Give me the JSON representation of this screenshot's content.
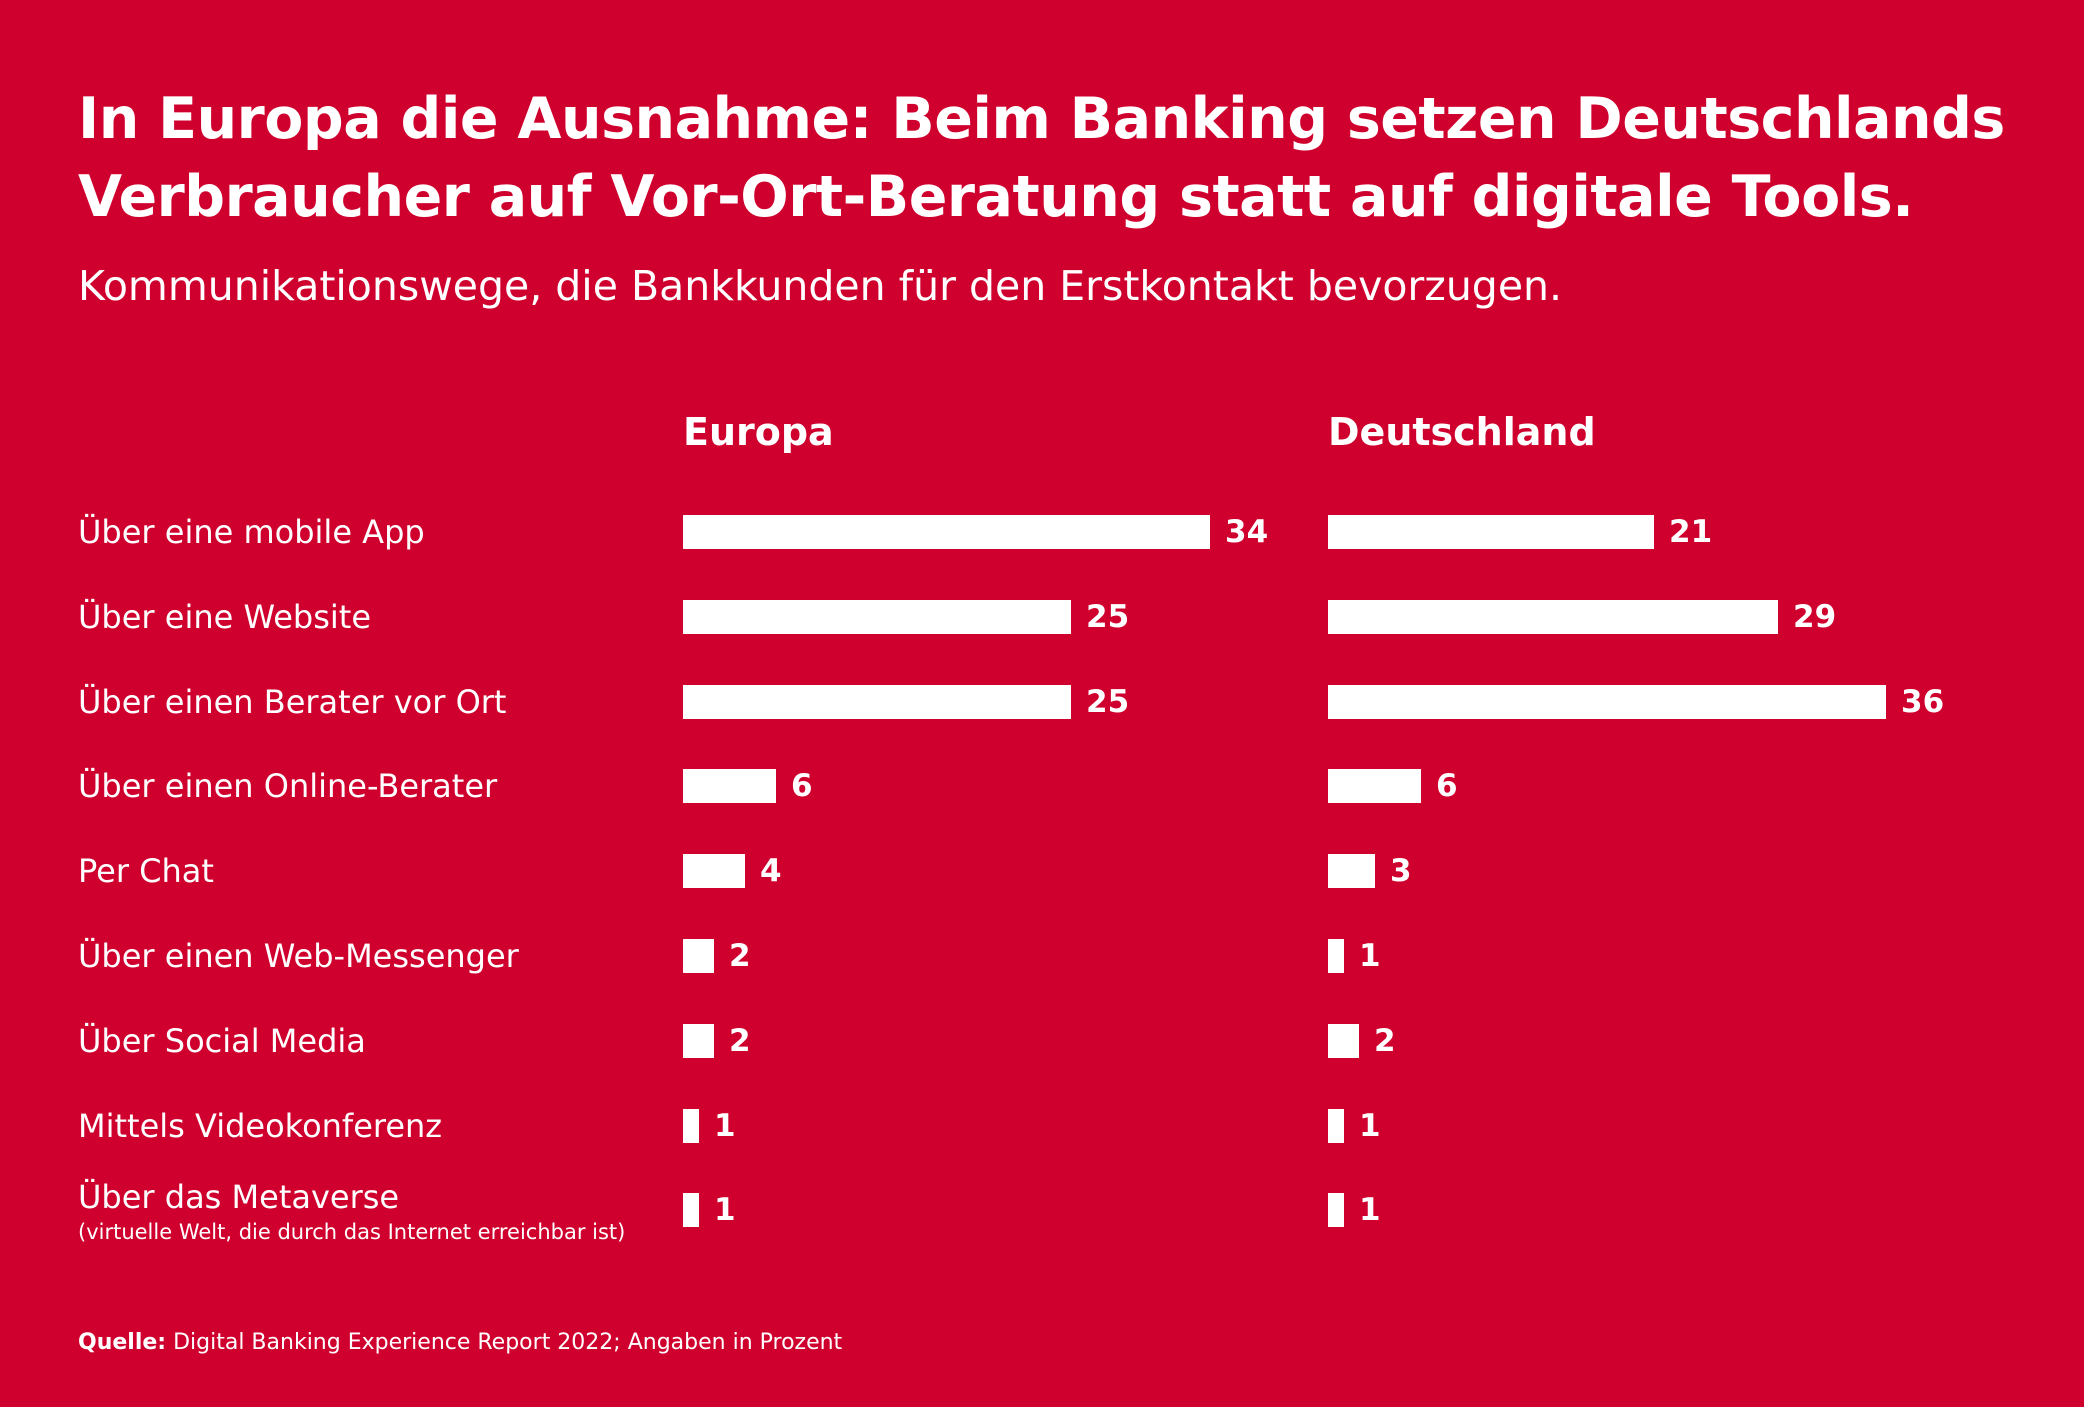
{
  "title": "In Europa die Ausnahme: Beim Banking setzen Deutschlands Verbraucher auf Vor-Ort-Beratung statt auf digitale Tools.",
  "subtitle": "Kommunikationswege, die Bankkunden für den Erstkontakt bevorzugen.",
  "source": {
    "label": "Quelle:",
    "text": "Digital Banking Experience Report 2022; Angaben in Prozent"
  },
  "colors": {
    "background": "#cf002d",
    "bar": "#ffffff",
    "text": "#ffffff"
  },
  "chart_data": {
    "type": "bar",
    "orientation": "horizontal",
    "unit": "Prozent",
    "categories": [
      "Über eine mobile App",
      "Über eine Website",
      "Über einen Berater vor Ort",
      "Über einen Online-Berater",
      "Per Chat",
      "Über einen Web-Messenger",
      "Über Social Media",
      "Mittels Videokonferenz",
      "Über das Metaverse"
    ],
    "category_notes": [
      "",
      "",
      "",
      "",
      "",
      "",
      "",
      "",
      "(virtuelle Welt, die durch das Internet erreichbar ist)"
    ],
    "series": [
      {
        "name": "Europa",
        "values": [
          34,
          25,
          25,
          6,
          4,
          2,
          2,
          1,
          1
        ]
      },
      {
        "name": "Deutschland",
        "values": [
          21,
          29,
          36,
          6,
          3,
          1,
          2,
          1,
          1
        ]
      }
    ],
    "xlim": [
      0,
      36
    ]
  }
}
